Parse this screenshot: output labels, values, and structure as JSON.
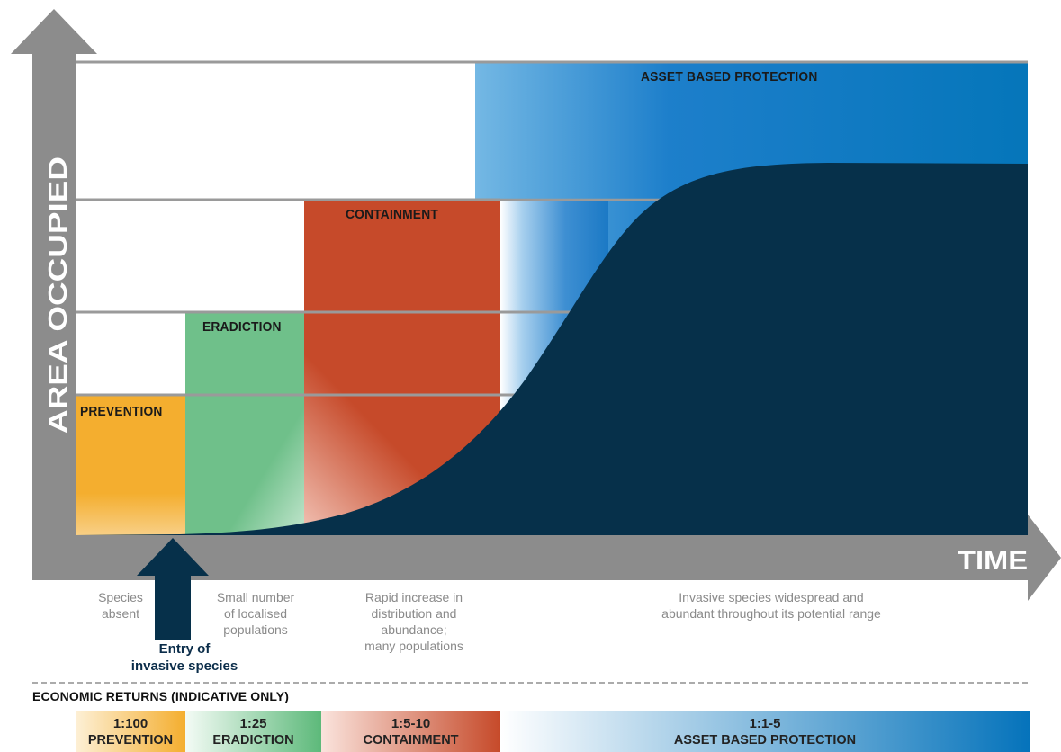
{
  "axes": {
    "y_label": "AREA OCCUPIED",
    "x_label": "TIME"
  },
  "stages": {
    "prevention": {
      "label": "PREVENTION",
      "color": "#f4ae2f"
    },
    "eradication": {
      "label": "ERADICTION",
      "color": "#6fc08a"
    },
    "containment": {
      "label": "CONTAINMENT",
      "color": "#c64a2a"
    },
    "asset": {
      "label": "ASSET BASED PROTECTION",
      "color": "#0573bb"
    }
  },
  "curve_color": "#06304a",
  "descriptions": {
    "prevention": "Species\nabsent",
    "eradication": "Small number\nof localised\npopulations",
    "containment": "Rapid increase in\ndistribution and\nabundance;\nmany populations",
    "asset": "Invasive  species widespread and\nabundant throughout its potential range"
  },
  "entry_label": "Entry of\ninvasive species",
  "economic_returns": {
    "title": "ECONOMIC RETURNS (INDICATIVE ONLY)",
    "items": [
      {
        "ratio": "1:100",
        "name": "PREVENTION"
      },
      {
        "ratio": "1:25",
        "name": "ERADICTION"
      },
      {
        "ratio": "1:5-10",
        "name": "CONTAINMENT"
      },
      {
        "ratio": "1:1-5",
        "name": "ASSET BASED PROTECTION"
      }
    ]
  }
}
